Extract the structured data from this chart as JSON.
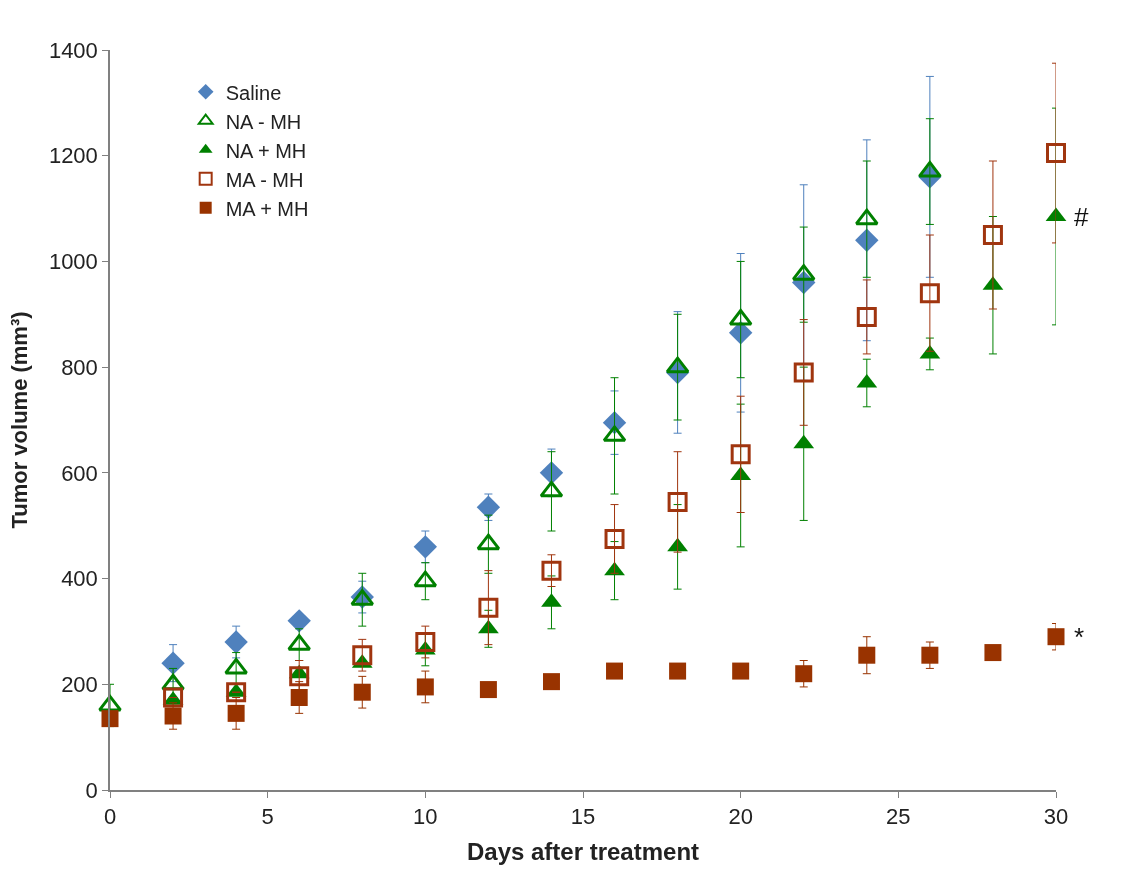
{
  "chart_data": {
    "type": "scatter",
    "xlabel": "Days after treatment",
    "ylabel": "Tumor volume (mm³)",
    "xlim": [
      0,
      30
    ],
    "xticks": [
      0,
      5,
      10,
      15,
      20,
      25,
      30
    ],
    "ylim": [
      0,
      1400
    ],
    "yticks": [
      0,
      200,
      400,
      600,
      800,
      1000,
      1200,
      1400
    ],
    "legend": "top left",
    "series": [
      {
        "name": "Saline",
        "color": "#4f81bd",
        "marker": "diamond",
        "x": [
          2,
          4,
          6,
          8,
          10,
          12,
          14,
          16,
          18,
          20,
          22,
          24,
          26
        ],
        "values": [
          240,
          280,
          320,
          365,
          460,
          535,
          600,
          695,
          790,
          865,
          960,
          1040,
          1160
        ],
        "errors": [
          35,
          30,
          null,
          30,
          30,
          25,
          45,
          60,
          115,
          150,
          185,
          190,
          190
        ]
      },
      {
        "name": "NA - MH",
        "color": "#008000",
        "marker": "triangle-open",
        "x": [
          0,
          2,
          4,
          6,
          8,
          10,
          12,
          14,
          16,
          18,
          20,
          22,
          24,
          26
        ],
        "values": [
          160,
          200,
          230,
          275,
          360,
          395,
          465,
          565,
          670,
          800,
          890,
          975,
          1080,
          1170
        ],
        "errors": [
          40,
          30,
          30,
          30,
          50,
          35,
          55,
          75,
          110,
          100,
          110,
          90,
          110,
          100
        ]
      },
      {
        "name": "NA + MH",
        "color": "#008000",
        "marker": "triangle",
        "x": [
          2,
          4,
          6,
          8,
          10,
          12,
          14,
          16,
          18,
          20,
          22,
          24,
          26,
          28,
          30
        ],
        "values": [
          170,
          185,
          220,
          240,
          265,
          305,
          355,
          415,
          460,
          595,
          655,
          770,
          825,
          955,
          1085
        ],
        "errors": [
          null,
          null,
          null,
          null,
          30,
          35,
          50,
          55,
          80,
          135,
          145,
          45,
          30,
          130,
          205
        ]
      },
      {
        "name": "MA - MH",
        "color": "#a0350f",
        "marker": "square-open",
        "x": [
          2,
          4,
          6,
          8,
          10,
          12,
          14,
          16,
          18,
          20,
          22,
          24,
          26,
          28,
          30
        ],
        "values": [
          175,
          185,
          215,
          255,
          280,
          345,
          415,
          475,
          545,
          635,
          790,
          895,
          940,
          1050,
          1205
        ],
        "errors": [
          null,
          null,
          30,
          30,
          30,
          70,
          30,
          65,
          95,
          110,
          100,
          70,
          110,
          140,
          170
        ]
      },
      {
        "name": "MA + MH",
        "color": "#993300",
        "marker": "square",
        "x": [
          0,
          2,
          4,
          6,
          8,
          10,
          12,
          14,
          16,
          18,
          20,
          22,
          24,
          26,
          28,
          30
        ],
        "values": [
          135,
          140,
          145,
          175,
          185,
          195,
          190,
          205,
          225,
          225,
          225,
          220,
          255,
          255,
          260,
          290
        ],
        "errors": [
          null,
          25,
          30,
          30,
          30,
          30,
          null,
          null,
          null,
          null,
          null,
          25,
          35,
          25,
          null,
          25
        ]
      }
    ],
    "annotations": [
      {
        "text": "#",
        "x": 30,
        "y": 1085
      },
      {
        "text": "*",
        "x": 30,
        "y": 290
      }
    ]
  }
}
